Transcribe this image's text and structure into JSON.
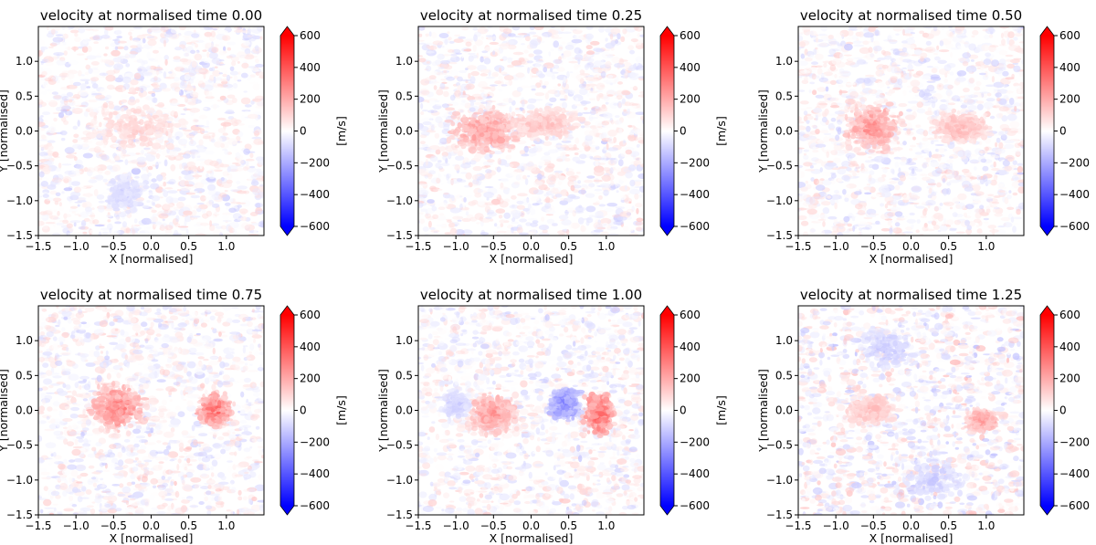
{
  "chart_data": [
    {
      "type": "heatmap",
      "title": "velocity at normalised time 0.00",
      "time": 0.0,
      "xlabel": "X [normalised]",
      "ylabel": "Y [normalised]",
      "xlim": [
        -1.5,
        1.5
      ],
      "ylim": [
        -1.5,
        1.5
      ],
      "xticks": [
        -1.5,
        -1.0,
        -0.5,
        0.0,
        0.5,
        1.0
      ],
      "xtick_labels": [
        "−1.5",
        "−1.0",
        "−0.5",
        "0.0",
        "0.5",
        "1.0"
      ],
      "yticks": [
        -1.5,
        -1.0,
        -0.5,
        0.0,
        0.5,
        1.0
      ],
      "ytick_labels": [
        "−1.5",
        "−1.0",
        "−0.5",
        "0.0",
        "0.5",
        "1.0"
      ],
      "colorbar": {
        "label": "[m/s]",
        "vmin": -600,
        "vmax": 600,
        "ticks": [
          600,
          400,
          200,
          0,
          -200,
          -400,
          -600
        ],
        "tick_labels": [
          "600",
          "400",
          "200",
          "0",
          "−200",
          "−400",
          "−600"
        ],
        "colormap": "bwr",
        "extend": "both"
      },
      "features": [
        {
          "kind": "diffuse",
          "x": -0.2,
          "y": 0.05,
          "rx": 0.6,
          "ry": 0.35,
          "sign": 1,
          "amplitude": 120
        },
        {
          "kind": "diffuse",
          "x": -0.35,
          "y": -0.9,
          "rx": 0.3,
          "ry": 0.3,
          "sign": -1,
          "amplitude": 110
        }
      ]
    },
    {
      "type": "heatmap",
      "title": "velocity at normalised time 0.25",
      "time": 0.25,
      "xlabel": "X [normalised]",
      "ylabel": "Y [normalised]",
      "xlim": [
        -1.5,
        1.5
      ],
      "ylim": [
        -1.5,
        1.5
      ],
      "xticks": [
        -1.5,
        -1.0,
        -0.5,
        0.0,
        0.5,
        1.0
      ],
      "xtick_labels": [
        "−1.5",
        "−1.0",
        "−0.5",
        "0.0",
        "0.5",
        "1.0"
      ],
      "yticks": [
        -1.5,
        -1.0,
        -0.5,
        0.0,
        0.5,
        1.0
      ],
      "ytick_labels": [
        "−1.5",
        "−1.0",
        "−0.5",
        "0.0",
        "0.5",
        "1.0"
      ],
      "colorbar": {
        "label": "[m/s]",
        "vmin": -600,
        "vmax": 600,
        "ticks": [
          600,
          400,
          200,
          0,
          -200,
          -400,
          -600
        ],
        "tick_labels": [
          "600",
          "400",
          "200",
          "0",
          "−200",
          "−400",
          "−600"
        ],
        "colormap": "bwr",
        "extend": "both"
      },
      "features": [
        {
          "kind": "blob",
          "x": -0.6,
          "y": 0.0,
          "rx": 0.45,
          "ry": 0.3,
          "sign": 1,
          "amplitude": 260
        },
        {
          "kind": "blob",
          "x": 0.15,
          "y": 0.1,
          "rx": 0.45,
          "ry": 0.2,
          "sign": 1,
          "amplitude": 160
        }
      ]
    },
    {
      "type": "heatmap",
      "title": "velocity at normalised time 0.50",
      "time": 0.5,
      "xlabel": "X [normalised]",
      "ylabel": "Y [normalised]",
      "xlim": [
        -1.5,
        1.5
      ],
      "ylim": [
        -1.5,
        1.5
      ],
      "xticks": [
        -1.5,
        -1.0,
        -0.5,
        0.0,
        0.5,
        1.0
      ],
      "xtick_labels": [
        "−1.5",
        "−1.0",
        "−0.5",
        "0.0",
        "0.5",
        "1.0"
      ],
      "yticks": [
        -1.5,
        -1.0,
        -0.5,
        0.0,
        0.5,
        1.0
      ],
      "ytick_labels": [
        "−1.5",
        "−1.0",
        "−0.5",
        "0.0",
        "0.5",
        "1.0"
      ],
      "colorbar": {
        "label": "[m/s]",
        "vmin": -600,
        "vmax": 600,
        "ticks": [
          600,
          400,
          200,
          0,
          -200,
          -400,
          -600
        ],
        "tick_labels": [
          "600",
          "400",
          "200",
          "0",
          "−200",
          "−400",
          "−600"
        ],
        "colormap": "bwr",
        "extend": "both"
      },
      "features": [
        {
          "kind": "blob",
          "x": -0.5,
          "y": 0.05,
          "rx": 0.35,
          "ry": 0.3,
          "sign": 1,
          "amplitude": 280
        },
        {
          "kind": "blob",
          "x": 0.65,
          "y": 0.05,
          "rx": 0.35,
          "ry": 0.2,
          "sign": 1,
          "amplitude": 190
        }
      ]
    },
    {
      "type": "heatmap",
      "title": "velocity at normalised time 0.75",
      "time": 0.75,
      "xlabel": "X [normalised]",
      "ylabel": "Y [normalised]",
      "xlim": [
        -1.5,
        1.5
      ],
      "ylim": [
        -1.5,
        1.5
      ],
      "xticks": [
        -1.5,
        -1.0,
        -0.5,
        0.0,
        0.5,
        1.0
      ],
      "xtick_labels": [
        "−1.5",
        "−1.0",
        "−0.5",
        "0.0",
        "0.5",
        "1.0"
      ],
      "yticks": [
        -1.5,
        -1.0,
        -0.5,
        0.0,
        0.5,
        1.0
      ],
      "ytick_labels": [
        "−1.5",
        "−1.0",
        "−0.5",
        "0.0",
        "0.5",
        "1.0"
      ],
      "colorbar": {
        "label": "[m/s]",
        "vmin": -600,
        "vmax": 600,
        "ticks": [
          600,
          400,
          200,
          0,
          -200,
          -400,
          -600
        ],
        "tick_labels": [
          "600",
          "400",
          "200",
          "0",
          "−200",
          "−400",
          "−600"
        ],
        "colormap": "bwr",
        "extend": "both"
      },
      "features": [
        {
          "kind": "blob",
          "x": -0.45,
          "y": 0.05,
          "rx": 0.33,
          "ry": 0.32,
          "sign": 1,
          "amplitude": 320
        },
        {
          "kind": "blob",
          "x": 0.85,
          "y": 0.0,
          "rx": 0.22,
          "ry": 0.22,
          "sign": 1,
          "amplitude": 380
        }
      ]
    },
    {
      "type": "heatmap",
      "title": "velocity at normalised time 1.00",
      "time": 1.0,
      "xlabel": "X [normalised]",
      "ylabel": "Y [normalised]",
      "xlim": [
        -1.5,
        1.5
      ],
      "ylim": [
        -1.5,
        1.5
      ],
      "xticks": [
        -1.5,
        -1.0,
        -0.5,
        0.0,
        0.5,
        1.0
      ],
      "xtick_labels": [
        "−1.5",
        "−1.0",
        "−0.5",
        "0.0",
        "0.5",
        "1.0"
      ],
      "yticks": [
        -1.5,
        -1.0,
        -0.5,
        0.0,
        0.5,
        1.0
      ],
      "ytick_labels": [
        "−1.5",
        "−1.0",
        "−0.5",
        "0.0",
        "0.5",
        "1.0"
      ],
      "colorbar": {
        "label": "[m/s]",
        "vmin": -600,
        "vmax": 600,
        "ticks": [
          600,
          400,
          200,
          0,
          -200,
          -400,
          -600
        ],
        "tick_labels": [
          "600",
          "400",
          "200",
          "0",
          "−200",
          "−400",
          "−600"
        ],
        "colormap": "bwr",
        "extend": "both"
      },
      "features": [
        {
          "kind": "blob",
          "x": -0.5,
          "y": -0.05,
          "rx": 0.32,
          "ry": 0.3,
          "sign": 1,
          "amplitude": 270
        },
        {
          "kind": "blob",
          "x": 0.45,
          "y": 0.1,
          "rx": 0.2,
          "ry": 0.22,
          "sign": -1,
          "amplitude": 330
        },
        {
          "kind": "blob",
          "x": 0.9,
          "y": -0.05,
          "rx": 0.18,
          "ry": 0.3,
          "sign": 1,
          "amplitude": 400
        },
        {
          "kind": "diffuse",
          "x": -1.0,
          "y": 0.1,
          "rx": 0.18,
          "ry": 0.2,
          "sign": -1,
          "amplitude": 140
        }
      ]
    },
    {
      "type": "heatmap",
      "title": "velocity at normalised time 1.25",
      "time": 1.25,
      "xlabel": "X [normalised]",
      "ylabel": "Y [normalised]",
      "xlim": [
        -1.5,
        1.5
      ],
      "ylim": [
        -1.5,
        1.5
      ],
      "xticks": [
        -1.5,
        -1.0,
        -0.5,
        0.0,
        0.5,
        1.0
      ],
      "xtick_labels": [
        "−1.5",
        "−1.0",
        "−0.5",
        "0.0",
        "0.5",
        "1.0"
      ],
      "yticks": [
        -1.5,
        -1.0,
        -0.5,
        0.0,
        0.5,
        1.0
      ],
      "ytick_labels": [
        "−1.5",
        "−1.0",
        "−0.5",
        "0.0",
        "0.5",
        "1.0"
      ],
      "colorbar": {
        "label": "[m/s]",
        "vmin": -600,
        "vmax": 600,
        "ticks": [
          600,
          400,
          200,
          0,
          -200,
          -400,
          -600
        ],
        "tick_labels": [
          "600",
          "400",
          "200",
          "0",
          "−200",
          "−400",
          "−600"
        ],
        "colormap": "bwr",
        "extend": "both"
      },
      "features": [
        {
          "kind": "blob",
          "x": -0.55,
          "y": 0.0,
          "rx": 0.3,
          "ry": 0.22,
          "sign": 1,
          "amplitude": 170
        },
        {
          "kind": "blob",
          "x": 0.95,
          "y": -0.15,
          "rx": 0.2,
          "ry": 0.15,
          "sign": 1,
          "amplitude": 260
        },
        {
          "kind": "diffuse",
          "x": -0.3,
          "y": 0.9,
          "rx": 0.35,
          "ry": 0.3,
          "sign": -1,
          "amplitude": 140
        },
        {
          "kind": "diffuse",
          "x": 0.3,
          "y": -1.0,
          "rx": 0.4,
          "ry": 0.3,
          "sign": -1,
          "amplitude": 130
        }
      ]
    }
  ],
  "colors": {
    "negative_end": "#0000ff",
    "zero": "#ffffff",
    "positive_end": "#ff0000",
    "axis": "#000000"
  }
}
